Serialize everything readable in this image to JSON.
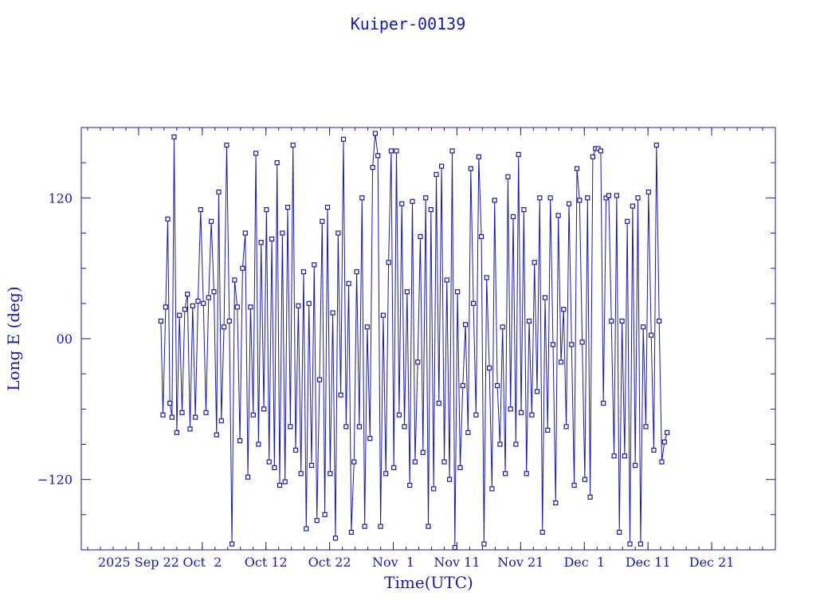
{
  "chart_data": {
    "type": "line",
    "title": "Kuiper-00139",
    "xlabel": "Time(UTC)",
    "ylabel": "Long E (deg)",
    "xlim": [
      "2025-09-13",
      "2025-12-31"
    ],
    "ylim": [
      -180,
      180
    ],
    "x_ticks": [
      {
        "date": "2025-09-22",
        "label": "2025 Sep 22"
      },
      {
        "date": "2025-10-02",
        "label": "Oct  2"
      },
      {
        "date": "2025-10-12",
        "label": "Oct 12"
      },
      {
        "date": "2025-10-22",
        "label": "Oct 22"
      },
      {
        "date": "2025-11-01",
        "label": "Nov  1"
      },
      {
        "date": "2025-11-11",
        "label": "Nov 11"
      },
      {
        "date": "2025-11-21",
        "label": "Nov 21"
      },
      {
        "date": "2025-12-01",
        "label": "Dec  1"
      },
      {
        "date": "2025-12-11",
        "label": "Dec 11"
      },
      {
        "date": "2025-12-21",
        "label": "Dec 21"
      }
    ],
    "y_ticks": [
      {
        "value": 120,
        "label": "120"
      },
      {
        "value": 0,
        "label": "00"
      },
      {
        "value": -120,
        "label": "−120"
      }
    ],
    "grid": false,
    "marker": "square",
    "line_color": "#1a1aa6",
    "series": [
      {
        "points": [
          [
            "2025-09-25T12:00",
            15
          ],
          [
            "2025-09-25T20:00",
            -65
          ],
          [
            "2025-09-26T06:00",
            27
          ],
          [
            "2025-09-26T14:00",
            102
          ],
          [
            "2025-09-26T22:00",
            -55
          ],
          [
            "2025-09-27T06:00",
            -67
          ],
          [
            "2025-09-27T14:00",
            172
          ],
          [
            "2025-09-28T00:00",
            -80
          ],
          [
            "2025-09-28T10:00",
            20
          ],
          [
            "2025-09-28T20:00",
            -63
          ],
          [
            "2025-09-29T06:00",
            25
          ],
          [
            "2025-09-29T16:00",
            38
          ],
          [
            "2025-09-30T02:00",
            -77
          ],
          [
            "2025-09-30T12:00",
            28
          ],
          [
            "2025-09-30T22:00",
            -67
          ],
          [
            "2025-10-01T08:00",
            32
          ],
          [
            "2025-10-01T18:00",
            110
          ],
          [
            "2025-10-02T04:00",
            30
          ],
          [
            "2025-10-02T14:00",
            -63
          ],
          [
            "2025-10-03T00:00",
            35
          ],
          [
            "2025-10-03T10:00",
            100
          ],
          [
            "2025-10-03T20:00",
            40
          ],
          [
            "2025-10-04T06:00",
            -82
          ],
          [
            "2025-10-04T14:00",
            125
          ],
          [
            "2025-10-05T00:00",
            -70
          ],
          [
            "2025-10-05T10:00",
            10
          ],
          [
            "2025-10-05T20:00",
            165
          ],
          [
            "2025-10-06T06:00",
            15
          ],
          [
            "2025-10-06T16:00",
            -175
          ],
          [
            "2025-10-07T02:00",
            50
          ],
          [
            "2025-10-07T12:00",
            27
          ],
          [
            "2025-10-07T22:00",
            -87
          ],
          [
            "2025-10-08T08:00",
            60
          ],
          [
            "2025-10-08T18:00",
            90
          ],
          [
            "2025-10-09T04:00",
            -118
          ],
          [
            "2025-10-09T14:00",
            27
          ],
          [
            "2025-10-10T00:00",
            -65
          ],
          [
            "2025-10-10T10:00",
            158
          ],
          [
            "2025-10-10T20:00",
            -90
          ],
          [
            "2025-10-11T06:00",
            82
          ],
          [
            "2025-10-11T16:00",
            -60
          ],
          [
            "2025-10-12T02:00",
            110
          ],
          [
            "2025-10-12T12:00",
            -105
          ],
          [
            "2025-10-12T22:00",
            85
          ],
          [
            "2025-10-13T08:00",
            -110
          ],
          [
            "2025-10-13T18:00",
            150
          ],
          [
            "2025-10-14T04:00",
            -125
          ],
          [
            "2025-10-14T14:00",
            90
          ],
          [
            "2025-10-15T00:00",
            -122
          ],
          [
            "2025-10-15T10:00",
            112
          ],
          [
            "2025-10-15T20:00",
            -75
          ],
          [
            "2025-10-16T06:00",
            165
          ],
          [
            "2025-10-16T16:00",
            -95
          ],
          [
            "2025-10-17T02:00",
            28
          ],
          [
            "2025-10-17T12:00",
            -115
          ],
          [
            "2025-10-17T22:00",
            57
          ],
          [
            "2025-10-18T08:00",
            -162
          ],
          [
            "2025-10-18T18:00",
            30
          ],
          [
            "2025-10-19T04:00",
            -108
          ],
          [
            "2025-10-19T14:00",
            63
          ],
          [
            "2025-10-20T00:00",
            -155
          ],
          [
            "2025-10-20T10:00",
            -35
          ],
          [
            "2025-10-20T20:00",
            100
          ],
          [
            "2025-10-21T06:00",
            -150
          ],
          [
            "2025-10-21T16:00",
            112
          ],
          [
            "2025-10-22T02:00",
            -115
          ],
          [
            "2025-10-22T12:00",
            22
          ],
          [
            "2025-10-22T22:00",
            -170
          ],
          [
            "2025-10-23T08:00",
            90
          ],
          [
            "2025-10-23T18:00",
            -48
          ],
          [
            "2025-10-24T04:00",
            170
          ],
          [
            "2025-10-24T14:00",
            -75
          ],
          [
            "2025-10-25T00:00",
            47
          ],
          [
            "2025-10-25T10:00",
            -165
          ],
          [
            "2025-10-25T20:00",
            -105
          ],
          [
            "2025-10-26T06:00",
            57
          ],
          [
            "2025-10-26T16:00",
            -75
          ],
          [
            "2025-10-27T02:00",
            120
          ],
          [
            "2025-10-27T12:00",
            -160
          ],
          [
            "2025-10-27T22:00",
            10
          ],
          [
            "2025-10-28T08:00",
            -85
          ],
          [
            "2025-10-28T18:00",
            146
          ],
          [
            "2025-10-29T04:00",
            175
          ],
          [
            "2025-10-29T14:00",
            156
          ],
          [
            "2025-10-30T00:00",
            -160
          ],
          [
            "2025-10-30T10:00",
            20
          ],
          [
            "2025-10-30T20:00",
            -115
          ],
          [
            "2025-10-31T06:00",
            65
          ],
          [
            "2025-10-31T16:00",
            160
          ],
          [
            "2025-11-01T02:00",
            -110
          ],
          [
            "2025-11-01T12:00",
            160
          ],
          [
            "2025-11-01T22:00",
            -65
          ],
          [
            "2025-11-02T08:00",
            115
          ],
          [
            "2025-11-02T18:00",
            -75
          ],
          [
            "2025-11-03T04:00",
            40
          ],
          [
            "2025-11-03T14:00",
            -125
          ],
          [
            "2025-11-04T00:00",
            117
          ],
          [
            "2025-11-04T10:00",
            -105
          ],
          [
            "2025-11-04T20:00",
            -20
          ],
          [
            "2025-11-05T06:00",
            87
          ],
          [
            "2025-11-05T16:00",
            -97
          ],
          [
            "2025-11-06T02:00",
            120
          ],
          [
            "2025-11-06T12:00",
            -160
          ],
          [
            "2025-11-06T22:00",
            110
          ],
          [
            "2025-11-07T08:00",
            -128
          ],
          [
            "2025-11-07T18:00",
            140
          ],
          [
            "2025-11-08T04:00",
            -55
          ],
          [
            "2025-11-08T14:00",
            147
          ],
          [
            "2025-11-09T00:00",
            -105
          ],
          [
            "2025-11-09T10:00",
            50
          ],
          [
            "2025-11-09T20:00",
            -120
          ],
          [
            "2025-11-10T06:00",
            160
          ],
          [
            "2025-11-10T16:00",
            -178
          ],
          [
            "2025-11-11T02:00",
            40
          ],
          [
            "2025-11-11T12:00",
            -110
          ],
          [
            "2025-11-11T22:00",
            -40
          ],
          [
            "2025-11-12T08:00",
            12
          ],
          [
            "2025-11-12T18:00",
            -80
          ],
          [
            "2025-11-13T04:00",
            145
          ],
          [
            "2025-11-13T14:00",
            30
          ],
          [
            "2025-11-14T00:00",
            -65
          ],
          [
            "2025-11-14T10:00",
            155
          ],
          [
            "2025-11-14T20:00",
            87
          ],
          [
            "2025-11-15T06:00",
            -175
          ],
          [
            "2025-11-15T16:00",
            52
          ],
          [
            "2025-11-16T02:00",
            -25
          ],
          [
            "2025-11-16T12:00",
            -128
          ],
          [
            "2025-11-16T22:00",
            118
          ],
          [
            "2025-11-17T08:00",
            -40
          ],
          [
            "2025-11-17T18:00",
            -90
          ],
          [
            "2025-11-18T04:00",
            10
          ],
          [
            "2025-11-18T14:00",
            -115
          ],
          [
            "2025-11-19T00:00",
            138
          ],
          [
            "2025-11-19T10:00",
            -60
          ],
          [
            "2025-11-19T20:00",
            104
          ],
          [
            "2025-11-20T06:00",
            -90
          ],
          [
            "2025-11-20T16:00",
            157
          ],
          [
            "2025-11-21T02:00",
            -63
          ],
          [
            "2025-11-21T12:00",
            110
          ],
          [
            "2025-11-21T22:00",
            -115
          ],
          [
            "2025-11-22T08:00",
            15
          ],
          [
            "2025-11-22T18:00",
            -65
          ],
          [
            "2025-11-23T04:00",
            65
          ],
          [
            "2025-11-23T14:00",
            -45
          ],
          [
            "2025-11-24T00:00",
            120
          ],
          [
            "2025-11-24T10:00",
            -165
          ],
          [
            "2025-11-24T20:00",
            35
          ],
          [
            "2025-11-25T06:00",
            -78
          ],
          [
            "2025-11-25T16:00",
            120
          ],
          [
            "2025-11-26T02:00",
            -5
          ],
          [
            "2025-11-26T12:00",
            -140
          ],
          [
            "2025-11-26T22:00",
            105
          ],
          [
            "2025-11-27T08:00",
            -20
          ],
          [
            "2025-11-27T18:00",
            25
          ],
          [
            "2025-11-28T04:00",
            -75
          ],
          [
            "2025-11-28T14:00",
            115
          ],
          [
            "2025-11-29T00:00",
            -5
          ],
          [
            "2025-11-29T10:00",
            -125
          ],
          [
            "2025-11-29T20:00",
            145
          ],
          [
            "2025-11-30T06:00",
            118
          ],
          [
            "2025-11-30T16:00",
            -3
          ],
          [
            "2025-12-01T02:00",
            -120
          ],
          [
            "2025-12-01T12:00",
            120
          ],
          [
            "2025-12-01T22:00",
            -135
          ],
          [
            "2025-12-02T08:00",
            155
          ],
          [
            "2025-12-02T18:00",
            162
          ],
          [
            "2025-12-03T04:00",
            162
          ],
          [
            "2025-12-03T14:00",
            160
          ],
          [
            "2025-12-04T00:00",
            -55
          ],
          [
            "2025-12-04T10:00",
            120
          ],
          [
            "2025-12-04T20:00",
            122
          ],
          [
            "2025-12-05T06:00",
            15
          ],
          [
            "2025-12-05T16:00",
            -100
          ],
          [
            "2025-12-06T02:00",
            122
          ],
          [
            "2025-12-06T12:00",
            -165
          ],
          [
            "2025-12-06T22:00",
            15
          ],
          [
            "2025-12-07T08:00",
            -100
          ],
          [
            "2025-12-07T18:00",
            100
          ],
          [
            "2025-12-08T04:00",
            -175
          ],
          [
            "2025-12-08T14:00",
            113
          ],
          [
            "2025-12-09T00:00",
            -108
          ],
          [
            "2025-12-09T10:00",
            120
          ],
          [
            "2025-12-09T20:00",
            -175
          ],
          [
            "2025-12-10T06:00",
            10
          ],
          [
            "2025-12-10T16:00",
            -75
          ],
          [
            "2025-12-11T02:00",
            125
          ],
          [
            "2025-12-11T12:00",
            3
          ],
          [
            "2025-12-11T22:00",
            -95
          ],
          [
            "2025-12-12T08:00",
            165
          ],
          [
            "2025-12-12T18:00",
            15
          ],
          [
            "2025-12-13T04:00",
            -105
          ],
          [
            "2025-12-13T14:00",
            -88
          ],
          [
            "2025-12-14T00:00",
            -80
          ]
        ]
      }
    ]
  }
}
